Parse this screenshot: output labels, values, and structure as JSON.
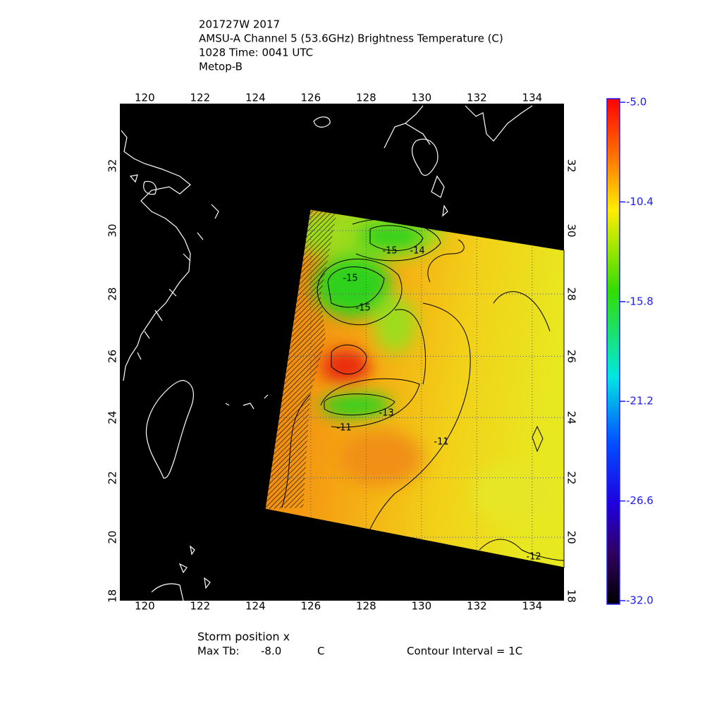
{
  "header": {
    "lines": [
      "201727W 2017",
      "AMSU-A Channel 5 (53.6GHz) Brightness Temperature (C)",
      "1028 Time: 0041 UTC",
      "Metop-B"
    ]
  },
  "chart_data": {
    "type": "map",
    "xlim": [
      119.1,
      135.15
    ],
    "ylim": [
      17.84,
      33.88
    ],
    "xticks": [
      120,
      122,
      124,
      126,
      128,
      130,
      132,
      134
    ],
    "yticks": [
      18,
      20,
      22,
      24,
      26,
      28,
      30,
      32
    ],
    "grid": true,
    "colorbar_lim": [
      -32,
      -5
    ],
    "colorbar_ticks": [
      {
        "value": -5,
        "label": "-5.0"
      },
      {
        "value": -10.4,
        "label": "-10.4"
      },
      {
        "value": -15.8,
        "label": "-15.8"
      },
      {
        "value": -21.2,
        "label": "-21.2"
      },
      {
        "value": -26.6,
        "label": "-26.6"
      },
      {
        "value": -32,
        "label": "-32.0"
      }
    ],
    "contour_labels": [
      -15,
      -14,
      -15,
      -15,
      -13,
      -11,
      -11,
      -12
    ]
  },
  "footer": {
    "storm_position": "Storm position x",
    "max_tb_label": "Max Tb:",
    "max_tb_value": "-8.0",
    "max_tb_unit": "C",
    "contour_interval": "Contour Interval = 1C"
  }
}
